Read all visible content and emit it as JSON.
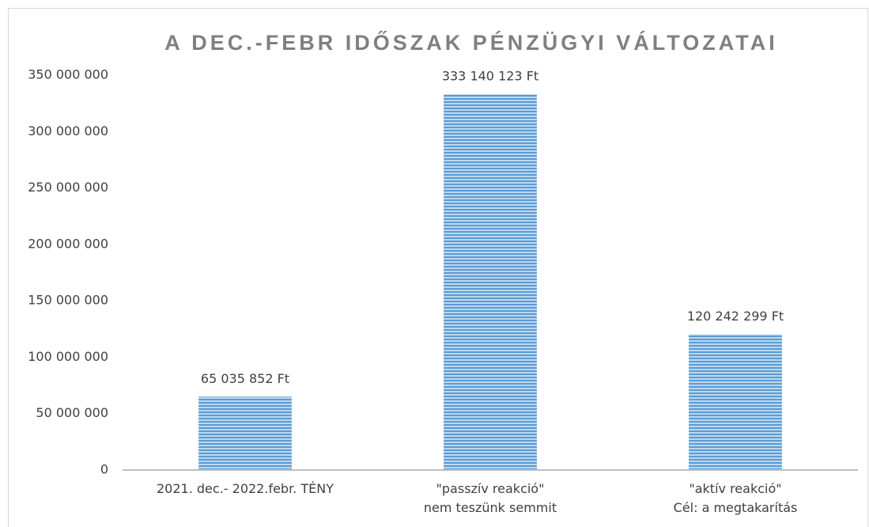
{
  "chart_data": {
    "type": "bar",
    "title": "A DEC.-FEBR IDŐSZAK PÉNZÜGYI VÁLTOZATAI",
    "categories": [
      "2021. dec.- 2022.febr. TÉNY",
      "\"passzív reakció\"\nnem teszünk semmit",
      "\"aktív reakció\"\nCél: a megtakarítás"
    ],
    "values": [
      65035852,
      333140123,
      120242299
    ],
    "value_labels": [
      "65 035 852 Ft",
      "333 140 123 Ft",
      "120 242 299 Ft"
    ],
    "color": "#5b9bd5",
    "ylim": [
      0,
      350000000
    ],
    "yticks": [
      0,
      {
        "value": 50000000,
        "label": "50 000 000"
      },
      {
        "value": 100000000,
        "label": "100 000 000"
      },
      {
        "value": 150000000,
        "label": "150 000 000"
      },
      {
        "value": 200000000,
        "label": "200 000 000"
      },
      {
        "value": 250000000,
        "label": "250 000 000"
      },
      {
        "value": 300000000,
        "label": "300 000 000"
      },
      {
        "value": 350000000,
        "label": "350 000 000"
      }
    ],
    "grid": false
  }
}
